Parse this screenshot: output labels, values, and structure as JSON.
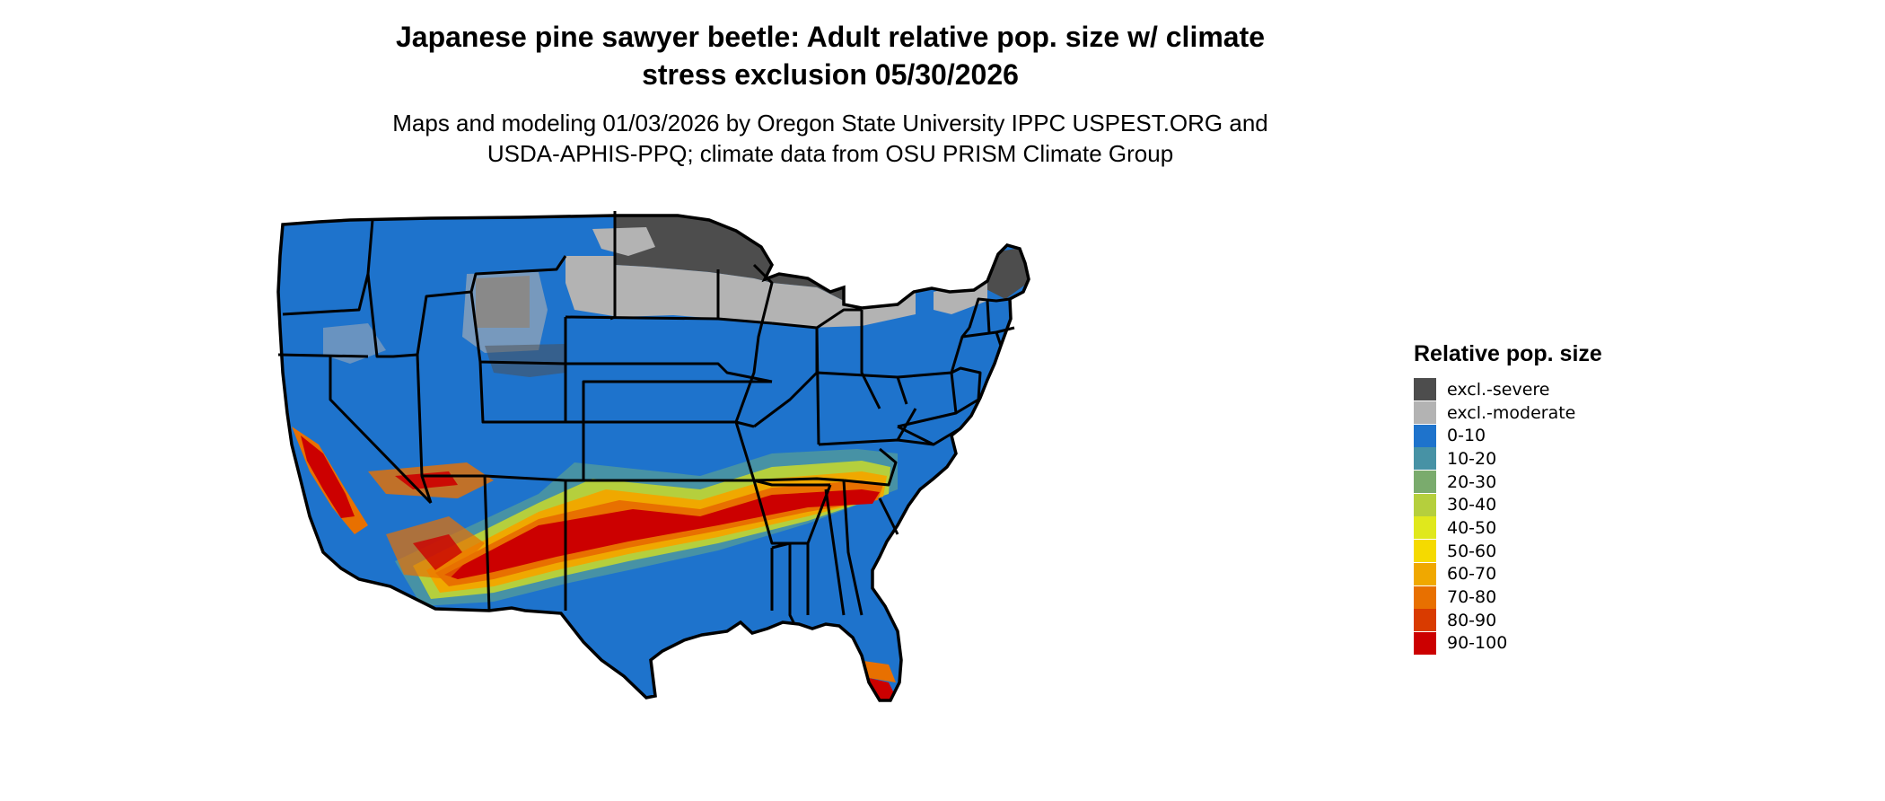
{
  "title_line1": "Japanese pine sawyer beetle: Adult relative pop. size w/ climate",
  "title_line2": "stress exclusion 05/30/2026",
  "subtitle_line1": "Maps and modeling 01/03/2026 by Oregon State University IPPC USPEST.ORG and",
  "subtitle_line2": "USDA-APHIS-PPQ; climate data from OSU PRISM Climate Group",
  "legend": {
    "title": "Relative pop. size",
    "items": [
      {
        "label": "excl.-severe",
        "color": "#4d4d4d"
      },
      {
        "label": "excl.-moderate",
        "color": "#b3b3b3"
      },
      {
        "label": "0-10",
        "color": "#1e73cc"
      },
      {
        "label": "10-20",
        "color": "#4792a5"
      },
      {
        "label": "20-30",
        "color": "#7aab6d"
      },
      {
        "label": "30-40",
        "color": "#b5cf3d"
      },
      {
        "label": "40-50",
        "color": "#e0e81c"
      },
      {
        "label": "50-60",
        "color": "#f5da00"
      },
      {
        "label": "60-70",
        "color": "#f0a800"
      },
      {
        "label": "70-80",
        "color": "#e87000"
      },
      {
        "label": "80-90",
        "color": "#d93b00"
      },
      {
        "label": "90-100",
        "color": "#cc0000"
      }
    ]
  }
}
